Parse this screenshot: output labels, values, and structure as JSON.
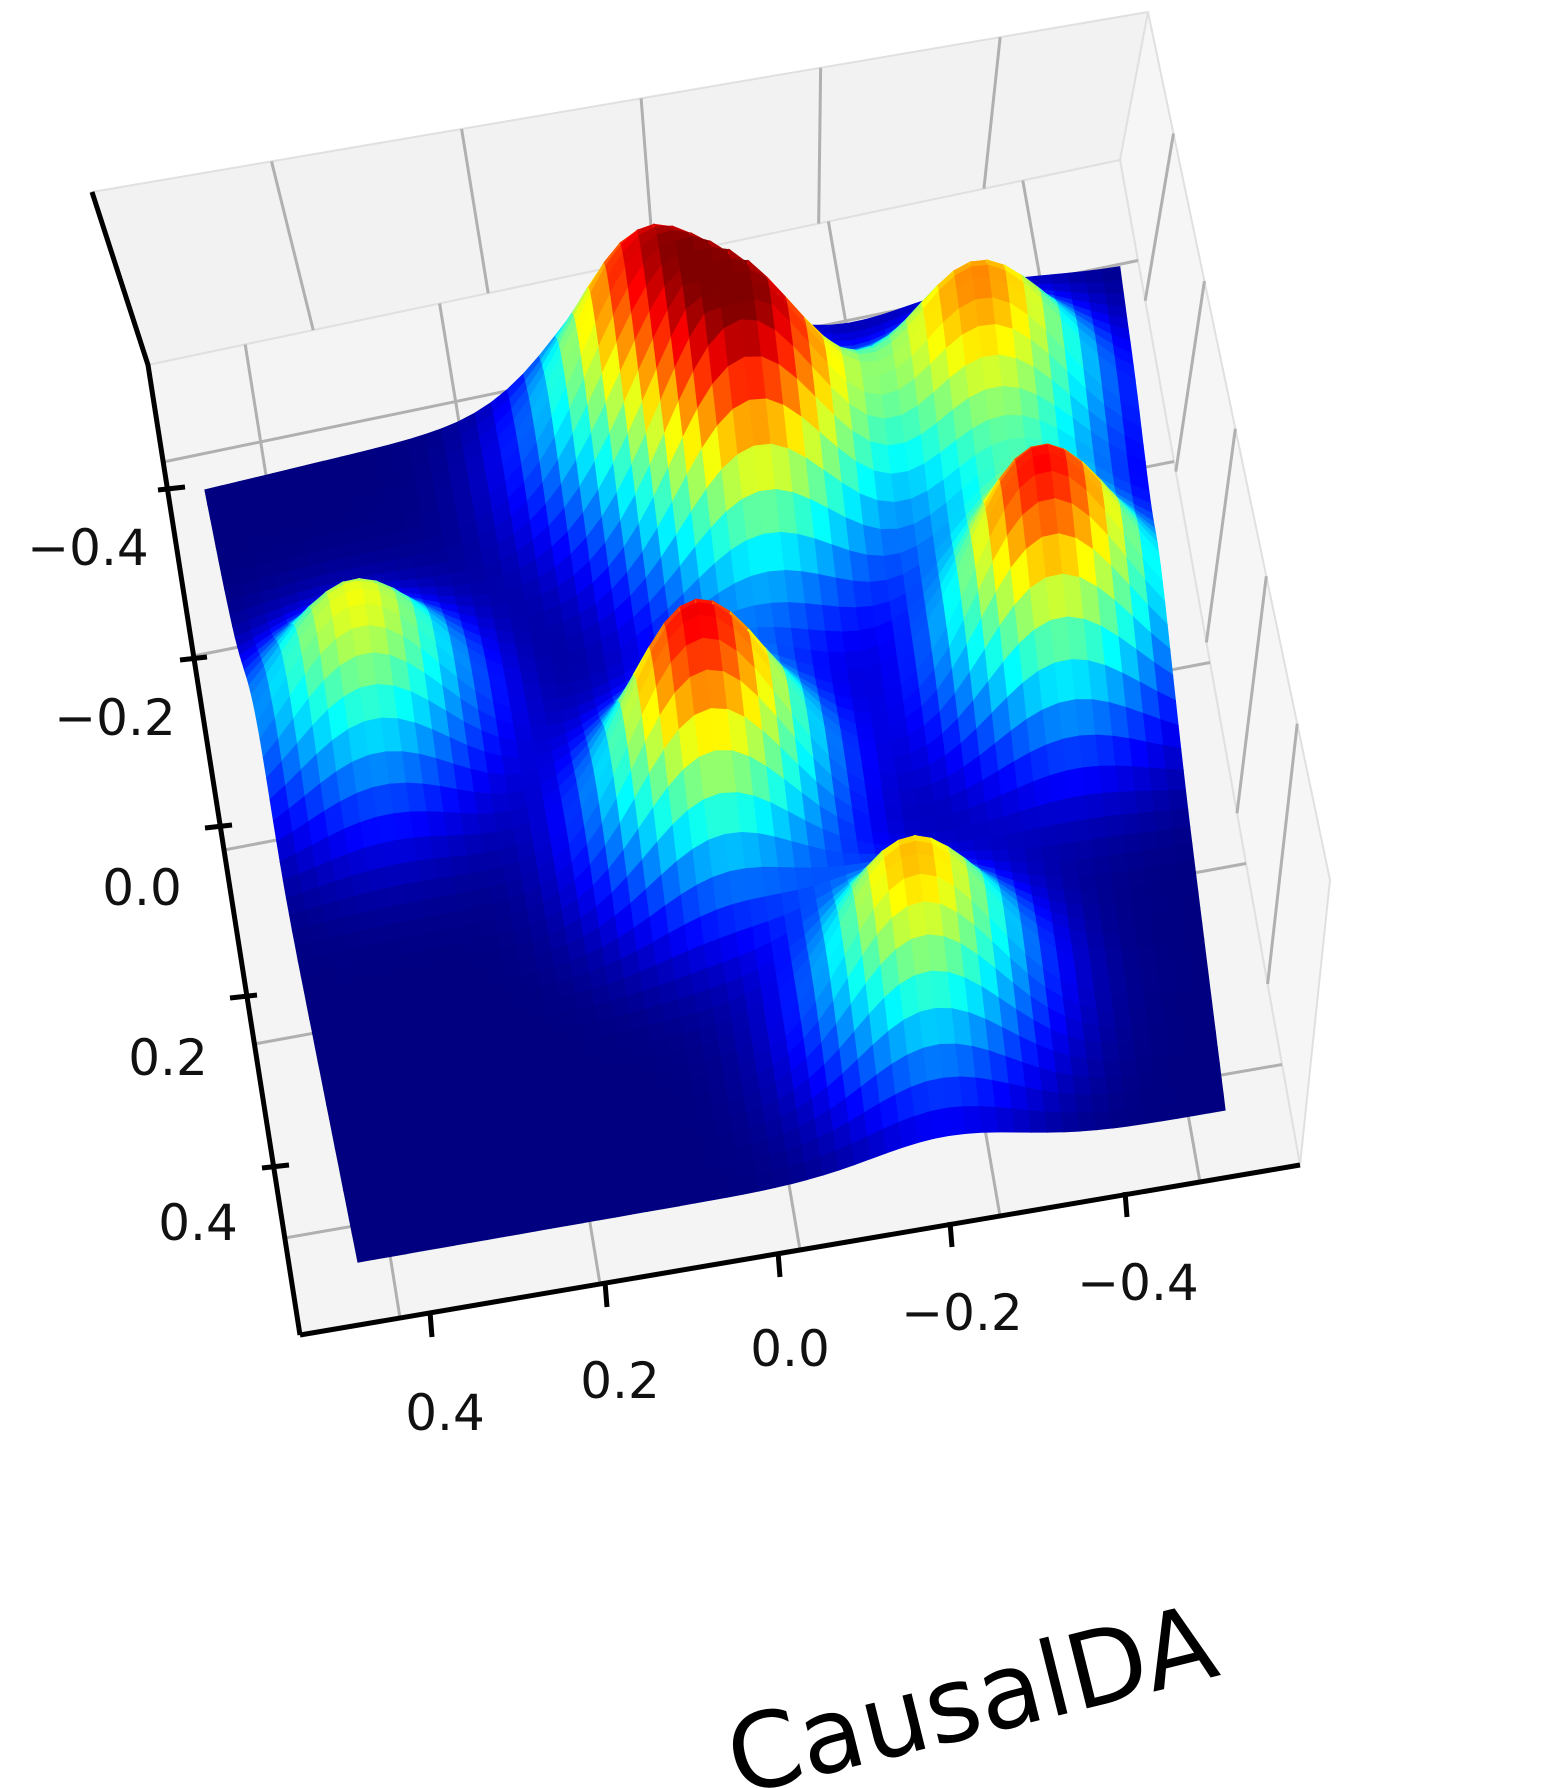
{
  "chart_data": {
    "type": "surface3d",
    "title": "",
    "xlabel": "CausalDA",
    "ylabel": "",
    "x_ticks": [
      "0.4",
      "0.2",
      "0.0",
      "−0.2",
      "−0.4"
    ],
    "y_ticks": [
      "−0.4",
      "−0.2",
      "0.0",
      "0.2",
      "0.4"
    ],
    "x_range": [
      -0.5,
      0.5
    ],
    "y_range": [
      -0.5,
      0.5
    ],
    "colormap": "jet",
    "grid": true,
    "peaks": [
      {
        "x": -0.02,
        "y": -0.42,
        "height": 0.78
      },
      {
        "x": 0.34,
        "y": -0.32,
        "height": 0.74
      },
      {
        "x": 0.08,
        "y": -0.28,
        "height": 0.95
      },
      {
        "x": -0.38,
        "y": -0.14,
        "height": 0.62
      },
      {
        "x": 0.38,
        "y": -0.05,
        "height": 0.88
      },
      {
        "x": -0.02,
        "y": 0.05,
        "height": 0.9
      },
      {
        "x": 0.18,
        "y": 0.33,
        "height": 0.7
      }
    ],
    "colors": {
      "pane": "#f2f2f2",
      "pane_edge": "#e0e0e0",
      "grid": "#b0b0b0",
      "axis": "#000000"
    }
  }
}
